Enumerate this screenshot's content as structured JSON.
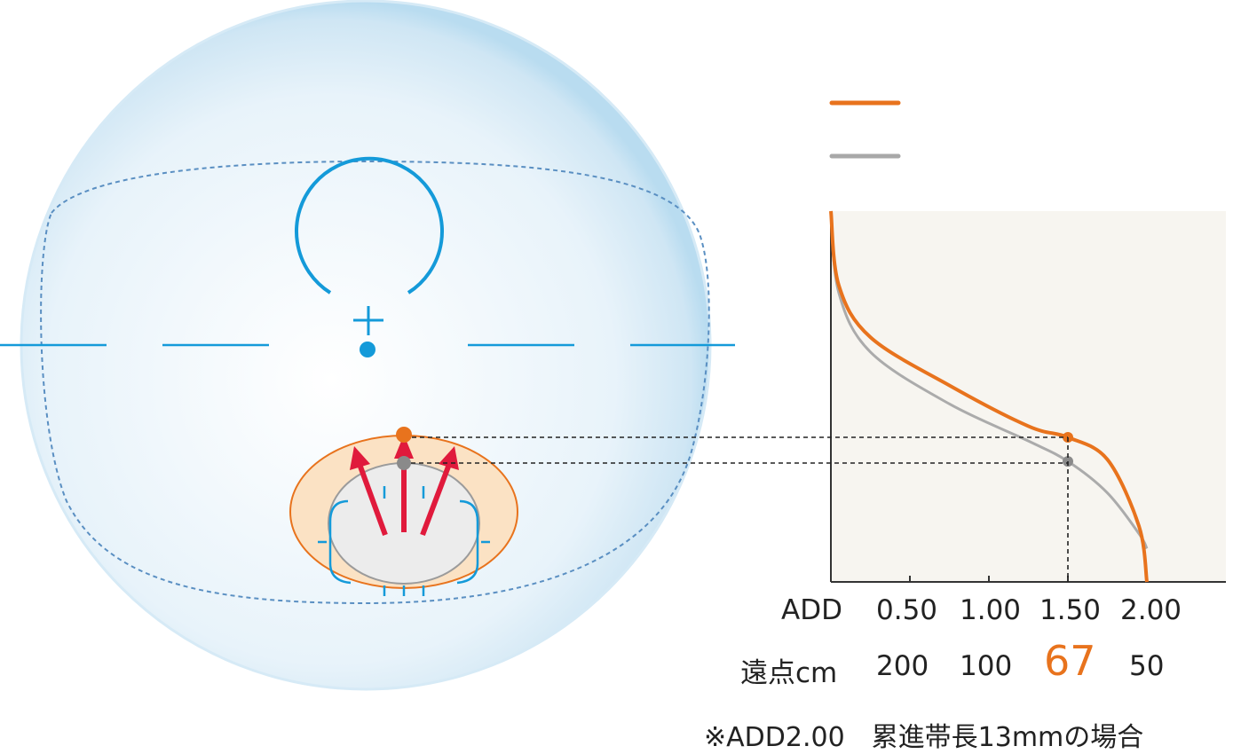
{
  "colors": {
    "orange": "#e8731d",
    "gray": "#9b9b9b",
    "blue": "#149ad9",
    "arrow": "#e01a3c",
    "chart_bg": "#f7f5f0",
    "zone_fill": "#fbe2c4"
  },
  "legend": {
    "items": [
      {
        "color": "orange",
        "label": ""
      },
      {
        "color": "gray",
        "label": ""
      }
    ]
  },
  "chart": {
    "x_axis_row_label": "ADD",
    "x_ticks": [
      "0.50",
      "1.00",
      "1.50",
      "2.00"
    ],
    "distance_row_label": "遠点cm",
    "distance_values": [
      "200",
      "100",
      "67",
      "50"
    ],
    "highlighted_distance": "67"
  },
  "footnote": "※ADD2.00　累進帯長13mmの場合",
  "chart_data": {
    "type": "line",
    "title": "",
    "xlabel": "ADD",
    "ylabel": "",
    "xlim": [
      0,
      2.5
    ],
    "x_ticks": [
      0.5,
      1.0,
      1.5,
      2.0
    ],
    "series": [
      {
        "color": "orange",
        "x": [
          0,
          0.05,
          0.25,
          0.75,
          1.25,
          1.5,
          1.75,
          1.95,
          2.0
        ],
        "y": [
          1.0,
          0.8,
          0.66,
          0.53,
          0.42,
          0.39,
          0.33,
          0.15,
          0.0
        ]
      },
      {
        "color": "gray",
        "x": [
          0,
          0.05,
          0.25,
          0.75,
          1.25,
          1.5,
          1.75,
          1.95,
          2.0
        ],
        "y": [
          1.0,
          0.78,
          0.62,
          0.48,
          0.38,
          0.325,
          0.24,
          0.13,
          0.09
        ]
      }
    ],
    "markers": [
      {
        "series": "orange",
        "x": 1.5
      },
      {
        "series": "gray",
        "x": 1.5
      }
    ]
  }
}
